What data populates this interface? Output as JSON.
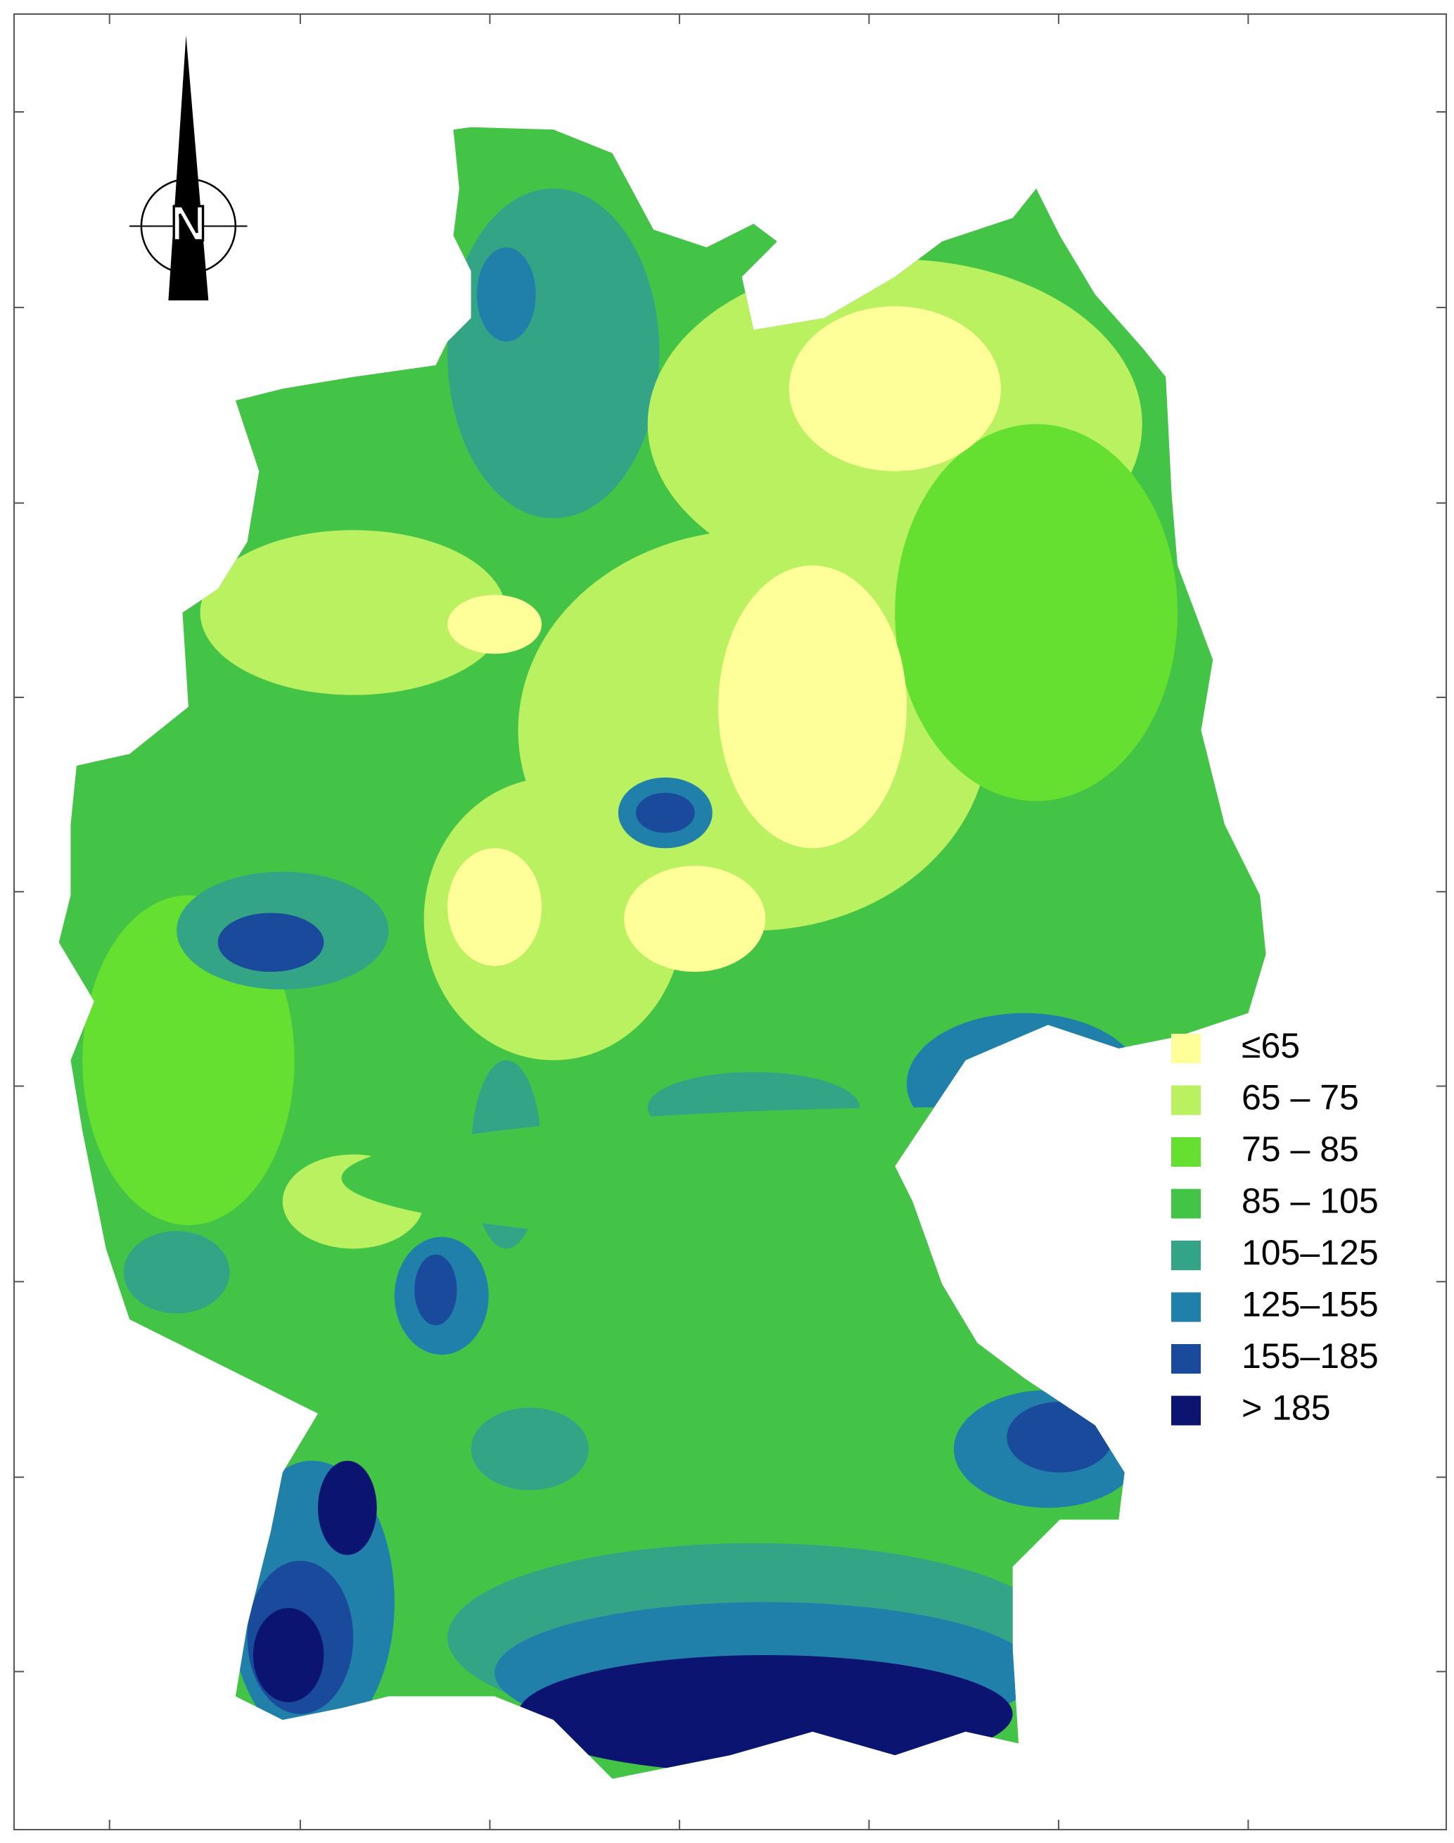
{
  "north_label": "N",
  "legend": {
    "items": [
      {
        "label": "≤65",
        "color": "#ffff99"
      },
      {
        "label": "65 – 75",
        "color": "#b9f160"
      },
      {
        "label": "75 – 85",
        "color": "#66e030"
      },
      {
        "label": "85 – 105",
        "color": "#44c446"
      },
      {
        "label": "105–125",
        "color": "#33a586"
      },
      {
        "label": "125–155",
        "color": "#2180aa"
      },
      {
        "label": "155–185",
        "color": "#1a4a9c"
      },
      {
        "label": "> 185",
        "color": "#0c1472"
      }
    ]
  }
}
